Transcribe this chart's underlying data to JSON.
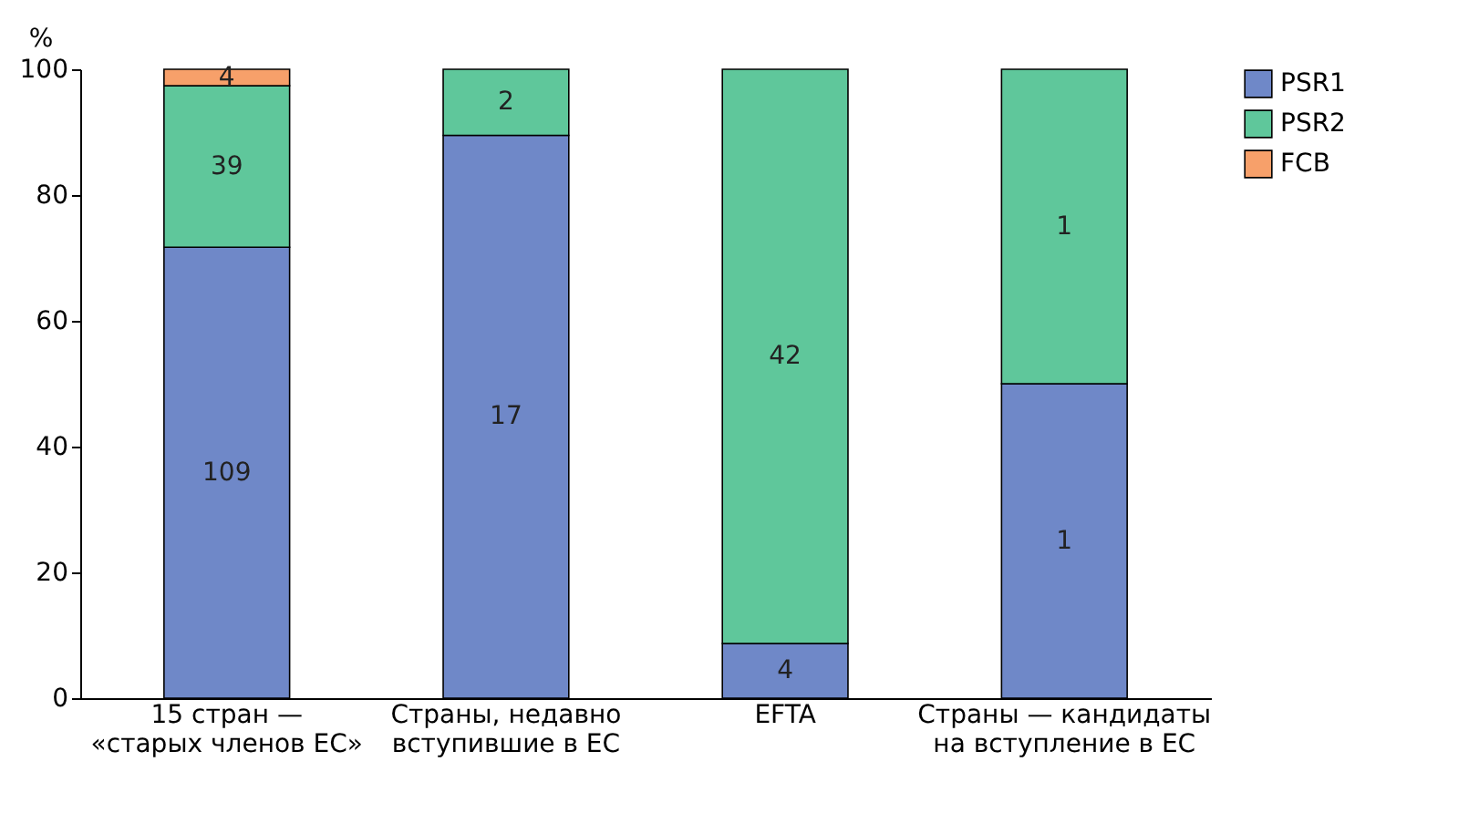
{
  "chart_data": {
    "type": "bar",
    "stacked": true,
    "ylabel": "%",
    "categories": [
      "15 стран — «старых членов ЕС»",
      "Страны, недавно вступившие в ЕС",
      "EFTA",
      "Страны — кандидаты на вступление в ЕС"
    ],
    "series": [
      {
        "name": "PSR1",
        "color": "#6f88c8",
        "values": [
          71.7,
          89.5,
          8.7,
          50
        ]
      },
      {
        "name": "PSR2",
        "color": "#5fc79b",
        "values": [
          25.7,
          10.5,
          91.3,
          50
        ]
      },
      {
        "name": "FCB",
        "color": "#f7a06a",
        "values": [
          2.6,
          0,
          0,
          0
        ]
      }
    ],
    "annotations": [
      "109",
      "39",
      "4",
      "17",
      "2",
      "4",
      "42",
      "1",
      "1"
    ],
    "ylim": [
      0,
      100
    ],
    "yticks": [
      0,
      20,
      40,
      60,
      80,
      100
    ],
    "grid": false,
    "legend": "top right"
  }
}
